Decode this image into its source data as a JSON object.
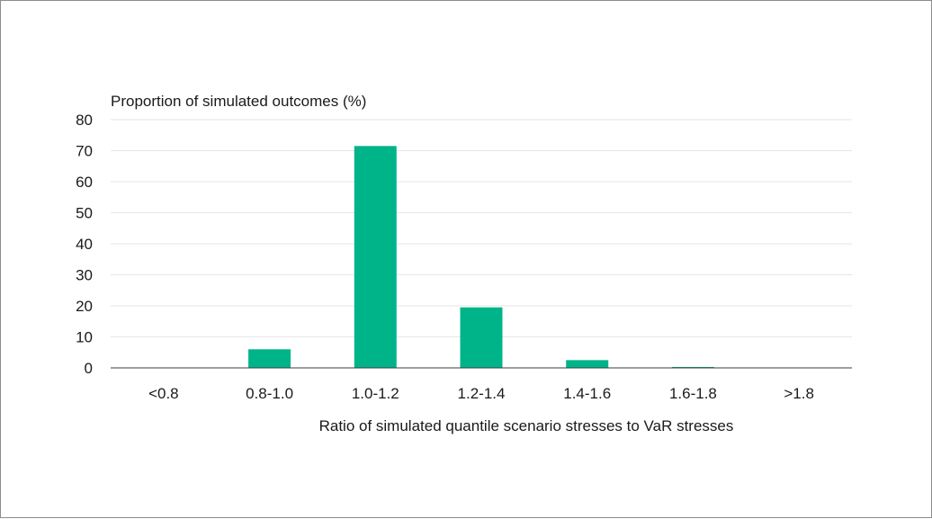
{
  "chart_data": {
    "type": "bar",
    "title": "",
    "ylabel": "Proportion of simulated outcomes (%)",
    "xlabel": "Ratio of simulated quantile scenario stresses to VaR stresses",
    "categories": [
      "<0.8",
      "0.8-1.0",
      "1.0-1.2",
      "1.2-1.4",
      "1.4-1.6",
      "1.6-1.8",
      ">1.8"
    ],
    "values": [
      0,
      6,
      71.5,
      19.5,
      2.5,
      0.3,
      0
    ],
    "ylim": [
      0,
      80
    ],
    "yticks": [
      0,
      10,
      20,
      30,
      40,
      50,
      60,
      70,
      80
    ],
    "grid": true,
    "legend": "none",
    "colors": {
      "bar": "#00b48a",
      "grid": "#e6e6e6",
      "axis": "#3c3c3c"
    }
  }
}
